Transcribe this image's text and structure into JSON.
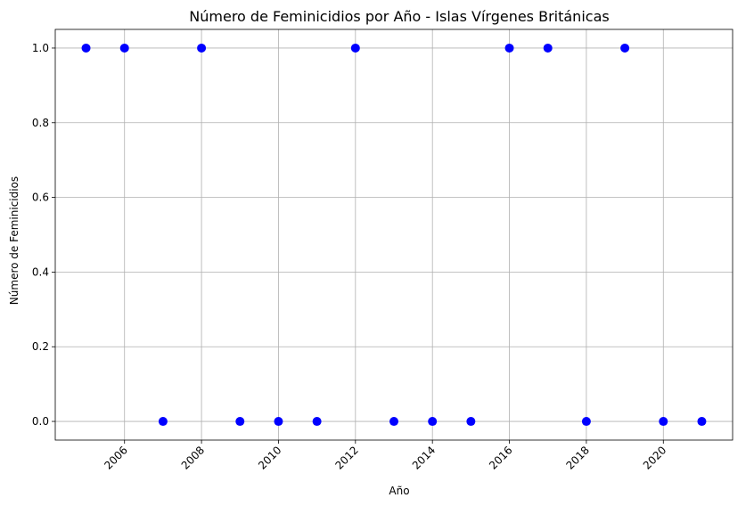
{
  "chart_data": {
    "type": "scatter",
    "title": "Número de Feminicidios por Año - Islas Vírgenes Británicas",
    "xlabel": "Año",
    "ylabel": "Número de Feminicidios",
    "x": [
      2005,
      2006,
      2007,
      2008,
      2009,
      2010,
      2011,
      2012,
      2013,
      2014,
      2015,
      2016,
      2017,
      2018,
      2019,
      2020,
      2021
    ],
    "y": [
      1,
      1,
      0,
      1,
      0,
      0,
      0,
      1,
      0,
      0,
      0,
      1,
      1,
      0,
      1,
      0,
      0
    ],
    "xticks": [
      "2006",
      "2008",
      "2010",
      "2012",
      "2014",
      "2016",
      "2018",
      "2020"
    ],
    "xtick_values": [
      2006,
      2008,
      2010,
      2012,
      2014,
      2016,
      2018,
      2020
    ],
    "yticks": [
      "0.0",
      "0.2",
      "0.4",
      "0.6",
      "0.8",
      "1.0"
    ],
    "ytick_values": [
      0,
      0.2,
      0.4,
      0.6,
      0.8,
      1.0
    ],
    "xlim": [
      2004.2,
      2021.8
    ],
    "ylim": [
      -0.05,
      1.05
    ],
    "grid": true,
    "marker_color": "#0000ff",
    "xtick_rotation_deg": -45
  }
}
